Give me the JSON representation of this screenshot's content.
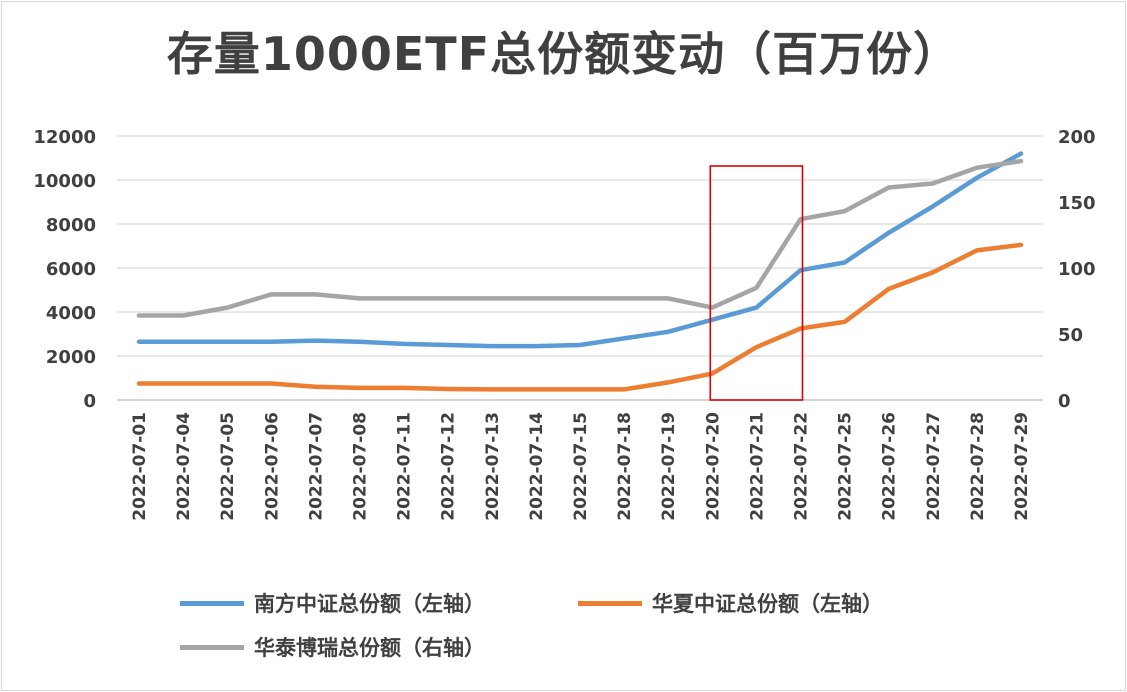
{
  "chart_data": {
    "type": "line",
    "title": "存量1000ETF总份额变动（百万份）",
    "categories": [
      "2022-07-01",
      "2022-07-04",
      "2022-07-05",
      "2022-07-06",
      "2022-07-07",
      "2022-07-08",
      "2022-07-11",
      "2022-07-12",
      "2022-07-13",
      "2022-07-14",
      "2022-07-15",
      "2022-07-18",
      "2022-07-19",
      "2022-07-20",
      "2022-07-21",
      "2022-07-22",
      "2022-07-25",
      "2022-07-26",
      "2022-07-27",
      "2022-07-28",
      "2022-07-29"
    ],
    "y_left": {
      "ylim": [
        0,
        12000
      ],
      "ticks": [
        0,
        2000,
        4000,
        6000,
        8000,
        10000,
        12000
      ]
    },
    "y_right": {
      "ylim": [
        0,
        200
      ],
      "ticks": [
        0,
        50,
        100,
        150,
        200
      ]
    },
    "series": [
      {
        "name": "南方中证总份额（左轴）",
        "axis": "left",
        "color": "#5b9bd5",
        "values": [
          2650,
          2650,
          2650,
          2650,
          2700,
          2650,
          2550,
          2500,
          2450,
          2450,
          2500,
          2800,
          3100,
          3650,
          4200,
          5900,
          6250,
          7600,
          8800,
          10100,
          11200
        ]
      },
      {
        "name": "华夏中证总份额（左轴）",
        "axis": "left",
        "color": "#ed7d31",
        "values": [
          750,
          750,
          750,
          750,
          600,
          550,
          550,
          500,
          480,
          480,
          480,
          480,
          800,
          1200,
          2400,
          3250,
          3550,
          5050,
          5800,
          6800,
          7050
        ]
      },
      {
        "name": "华泰博瑞总份额（右轴）",
        "axis": "right",
        "color": "#a5a5a5",
        "values": [
          64,
          64,
          70,
          80,
          80,
          77,
          77,
          77,
          77,
          77,
          77,
          77,
          77,
          70,
          85,
          137,
          143,
          161,
          164,
          176,
          181
        ]
      }
    ],
    "annotation": {
      "type": "highlight-box",
      "from": "2022-07-20",
      "to": "2022-07-22",
      "color": "#e00000"
    },
    "legend_placement": "bottom",
    "grid": "horizontal"
  }
}
